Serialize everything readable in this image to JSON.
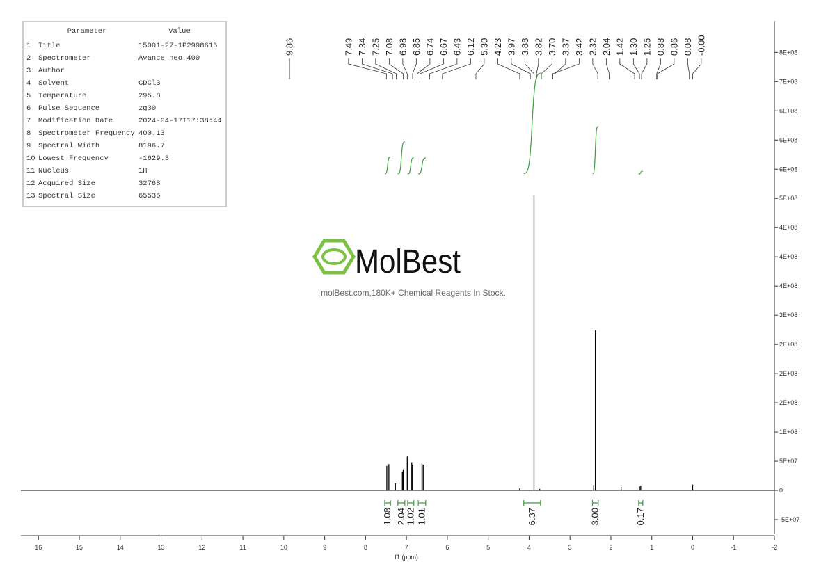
{
  "parameters": {
    "header": [
      "Parameter",
      "Value"
    ],
    "rows": [
      [
        "1",
        "Title",
        "15001-27-1P2998616"
      ],
      [
        "2",
        "Spectrometer",
        "Avance neo 400"
      ],
      [
        "3",
        "Author"
      ],
      [
        "4",
        "Solvent",
        "CDCl3"
      ],
      [
        "5",
        "Temperature",
        "295.8"
      ],
      [
        "6",
        "Pulse Sequence",
        "zg30"
      ],
      [
        "7",
        "Modification Date",
        "2024-04-17T17:38:44"
      ],
      [
        "8",
        "Spectrometer Frequency",
        "400.13"
      ],
      [
        "9",
        "Spectral Width",
        "8196.7"
      ],
      [
        "10",
        "Lowest Frequency",
        "-1629.3"
      ],
      [
        "11",
        "Nucleus",
        "1H"
      ],
      [
        "12",
        "Acquired Size",
        "32768"
      ],
      [
        "13",
        "Spectral Size",
        "65536"
      ]
    ]
  },
  "watermark": {
    "brand": "MolBest",
    "tagline": "molBest.com,180K+ Chemical Reagents In Stock."
  },
  "chart_data": {
    "type": "nmr",
    "xlabel": "f1 (ppm)",
    "xlim": [
      16.43,
      -2
    ],
    "xticks": [
      16,
      15,
      14,
      13,
      12,
      11,
      10,
      9,
      8,
      7,
      6,
      5,
      4,
      3,
      2,
      1,
      0,
      -1,
      -2
    ],
    "ylim": [
      -75000000,
      804000000
    ],
    "yticks": [
      {
        "value": 750000000,
        "label": "8E+08"
      },
      {
        "value": 700000000,
        "label": "7E+08"
      },
      {
        "value": 650000000,
        "label": "6E+08"
      },
      {
        "value": 600000000,
        "label": "6E+08"
      },
      {
        "value": 550000000,
        "label": "6E+08"
      },
      {
        "value": 500000000,
        "label": "5E+08"
      },
      {
        "value": 450000000,
        "label": "4E+08"
      },
      {
        "value": 400000000,
        "label": "4E+08"
      },
      {
        "value": 350000000,
        "label": "4E+08"
      },
      {
        "value": 300000000,
        "label": "3E+08"
      },
      {
        "value": 250000000,
        "label": "2E+08"
      },
      {
        "value": 200000000,
        "label": "2E+08"
      },
      {
        "value": 150000000,
        "label": "2E+08"
      },
      {
        "value": 100000000,
        "label": "1E+08"
      },
      {
        "value": 50000000,
        "label": "5E+07"
      },
      0,
      {
        "value": -50000000,
        "label": "-5E+07"
      }
    ],
    "peak_labels": [
      9.86,
      7.49,
      7.34,
      7.25,
      7.08,
      6.98,
      6.85,
      6.74,
      6.67,
      6.43,
      6.12,
      {
        "value": 5.3,
        "label": "5.30"
      },
      4.23,
      3.97,
      3.88,
      3.82,
      {
        "value": 3.7,
        "label": "3.70"
      },
      3.37,
      3.42,
      2.32,
      2.04,
      1.42,
      {
        "value": 1.3,
        "label": "1.30"
      },
      1.25,
      0.88,
      0.86,
      0.08,
      {
        "value": 0,
        "label": "-0.00"
      }
    ],
    "spectrum": {
      "color": "#000000",
      "x": [
        7.48,
        7.43,
        7.27,
        7.1,
        7.08,
        6.98,
        6.87,
        6.85,
        6.62,
        6.59,
        4.23,
        3.88,
        3.74,
        2.42,
        2.38,
        1.75,
        1.3,
        1.27,
        0
      ],
      "values": [
        42000000,
        45000000,
        12000000,
        32000000,
        36000000,
        58000000,
        48000000,
        44000000,
        46000000,
        44000000,
        3500000,
        506000000,
        2500000,
        9000000,
        274000000,
        6000000,
        7000000,
        8000000,
        10000000
      ]
    },
    "integrals": {
      "color": "#3a9e3a",
      "ranges": [
        [
          7.53,
          7.39
        ],
        [
          7.21,
          7.04
        ],
        [
          6.97,
          6.82
        ],
        [
          6.71,
          6.53
        ],
        [
          4.13,
          3.72
        ],
        [
          2.45,
          2.31
        ],
        [
          1.32,
          1.22
        ]
      ],
      "values": [
        1.08,
        2.04,
        1.02,
        1.01,
        6.37,
        3,
        0.17
      ],
      "value_labels": [
        "1.08",
        "2.04",
        "1.02",
        "1.01",
        "6.37",
        "3.00",
        "0.17"
      ]
    }
  }
}
